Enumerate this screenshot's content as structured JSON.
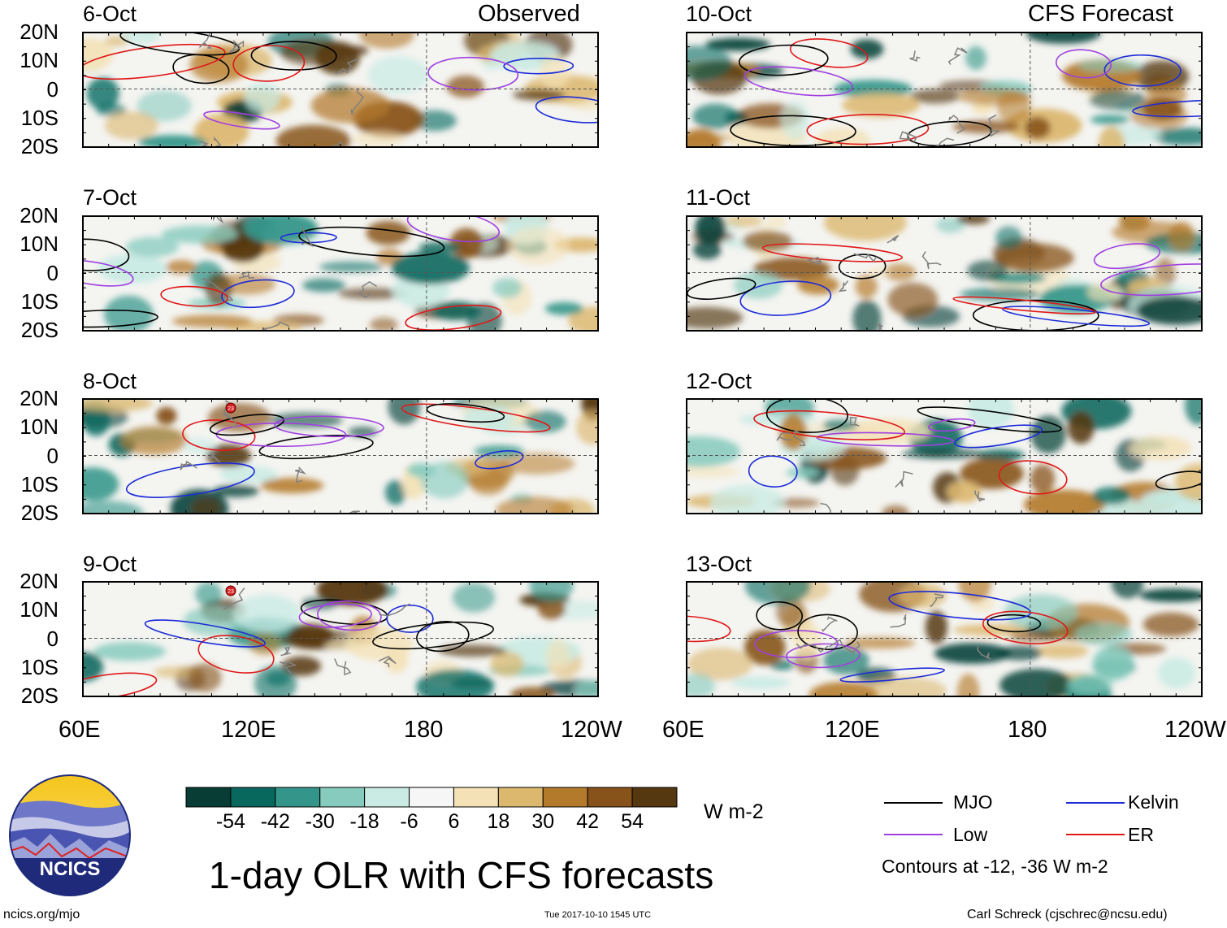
{
  "title": "1-day OLR with CFS forecasts",
  "corner_labels": {
    "left": "Observed",
    "right": "CFS Forecast"
  },
  "panels": [
    {
      "date": "6-Oct",
      "column": "observed"
    },
    {
      "date": "7-Oct",
      "column": "observed"
    },
    {
      "date": "8-Oct",
      "column": "observed"
    },
    {
      "date": "9-Oct",
      "column": "observed"
    },
    {
      "date": "10-Oct",
      "column": "forecast"
    },
    {
      "date": "11-Oct",
      "column": "forecast"
    },
    {
      "date": "12-Oct",
      "column": "forecast"
    },
    {
      "date": "13-Oct",
      "column": "forecast"
    }
  ],
  "lat_labels": [
    "20N",
    "10N",
    "0",
    "10S",
    "20S"
  ],
  "lon_labels": [
    "60E",
    "120E",
    "180",
    "120W"
  ],
  "storm_marker": "23",
  "colorbar": {
    "unit": "W m-2",
    "ticks": [
      "-54",
      "-42",
      "-30",
      "-18",
      "-6",
      "6",
      "18",
      "30",
      "42",
      "54"
    ],
    "colors": [
      "#073d35",
      "#08685e",
      "#34968a",
      "#86cbbe",
      "#c9ebe4",
      "#f6f6f6",
      "#f4e2b6",
      "#dcb76e",
      "#b47a2b",
      "#87531a",
      "#553710"
    ]
  },
  "legend": {
    "items": [
      {
        "label": "MJO",
        "color": "#000000"
      },
      {
        "label": "Kelvin",
        "color": "#1c2bd8"
      },
      {
        "label": "Low",
        "color": "#a040e0"
      },
      {
        "label": "ER",
        "color": "#e01818"
      }
    ],
    "note": "Contours at -12, -36 W m-2"
  },
  "logo": {
    "text": "NCICS"
  },
  "footer": {
    "url": "ncics.org/mjo",
    "timestamp": "Tue 2017-10-10 1545 UTC",
    "credit": "Carl Schreck (cjschrec@ncsu.edu)"
  }
}
